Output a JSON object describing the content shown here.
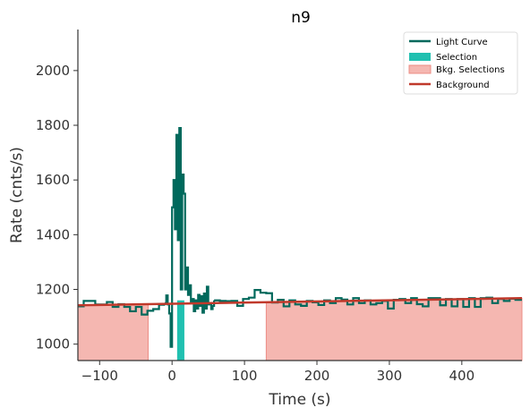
{
  "chart_data": {
    "type": "line",
    "title": "n9",
    "xlabel": "Time (s)",
    "ylabel": "Rate (cnts/s)",
    "xlim": [
      -130,
      483
    ],
    "ylim": [
      940,
      2150
    ],
    "x_ticks": [
      -100,
      0,
      100,
      200,
      300,
      400
    ],
    "y_ticks": [
      1000,
      1200,
      1400,
      1600,
      1800,
      2000
    ],
    "grid": false,
    "legend_position": "top-right",
    "colors": {
      "light_curve": "#00695c",
      "selection": "#20c0b0",
      "bkg_selection_fill": "#f5b7b1",
      "bkg_selection_edge": "#ec8c84",
      "background": "#c0392b",
      "axis": "#333333"
    },
    "legend": [
      {
        "label": "Light Curve",
        "kind": "line",
        "color": "#00695c"
      },
      {
        "label": "Selection",
        "kind": "patch",
        "color": "#20c0b0"
      },
      {
        "label": "Bkg. Selections",
        "kind": "patch",
        "color": "#f5b7b1"
      },
      {
        "label": "Background",
        "kind": "line",
        "color": "#c0392b"
      }
    ],
    "bkg_selections": [
      [
        -130,
        -33
      ],
      [
        130,
        483
      ]
    ],
    "selection": [
      7,
      17
    ],
    "background": {
      "x": [
        -130,
        483
      ],
      "y": [
        1142,
        1168
      ]
    },
    "light_curve_coarse": {
      "x": [
        -130,
        -122,
        -114,
        -106,
        -98,
        -90,
        -82,
        -74,
        -66,
        -58,
        -50,
        -42,
        -34,
        -26,
        -18,
        -10
      ],
      "y": [
        1138,
        1158,
        1158,
        1145,
        1145,
        1154,
        1136,
        1146,
        1136,
        1120,
        1136,
        1108,
        1122,
        1128,
        1144,
        1142
      ]
    },
    "light_curve_fine": {
      "x": [
        -10,
        -8,
        -6,
        -4,
        -2,
        0,
        2,
        4,
        6,
        8,
        10,
        12,
        14,
        16,
        18,
        20,
        22,
        24,
        26,
        28,
        30,
        32,
        34,
        36,
        38,
        40,
        42,
        44,
        46,
        48,
        50,
        52,
        54,
        56,
        58
      ],
      "y": [
        1150,
        1178,
        1145,
        1112,
        990,
        1500,
        1600,
        1420,
        1765,
        1380,
        1790,
        1200,
        1620,
        1550,
        1200,
        1280,
        1180,
        1215,
        1150,
        1165,
        1120,
        1160,
        1130,
        1180,
        1140,
        1175,
        1115,
        1185,
        1130,
        1210,
        1145,
        1150,
        1128,
        1140,
        1160
      ]
    },
    "light_curve_tail": {
      "x": [
        58,
        66,
        74,
        82,
        90,
        98,
        106,
        114,
        122,
        130,
        138,
        146,
        154,
        162,
        170,
        178,
        186,
        194,
        202,
        210,
        218,
        226,
        234,
        242,
        250,
        258,
        266,
        274,
        282,
        290,
        298,
        306,
        314,
        322,
        330,
        338,
        346,
        354,
        362,
        370,
        378,
        386,
        394,
        402,
        410,
        418,
        426,
        434,
        442,
        450,
        458,
        466,
        474,
        483
      ],
      "y": [
        1160,
        1158,
        1157,
        1158,
        1140,
        1165,
        1170,
        1198,
        1188,
        1186,
        1152,
        1162,
        1138,
        1160,
        1145,
        1140,
        1158,
        1153,
        1143,
        1160,
        1150,
        1168,
        1163,
        1145,
        1168,
        1150,
        1160,
        1145,
        1150,
        1158,
        1130,
        1162,
        1165,
        1150,
        1168,
        1146,
        1138,
        1168,
        1168,
        1142,
        1165,
        1138,
        1165,
        1136,
        1168,
        1136,
        1168,
        1170,
        1150,
        1165,
        1158,
        1166,
        1162,
        1162
      ]
    }
  }
}
